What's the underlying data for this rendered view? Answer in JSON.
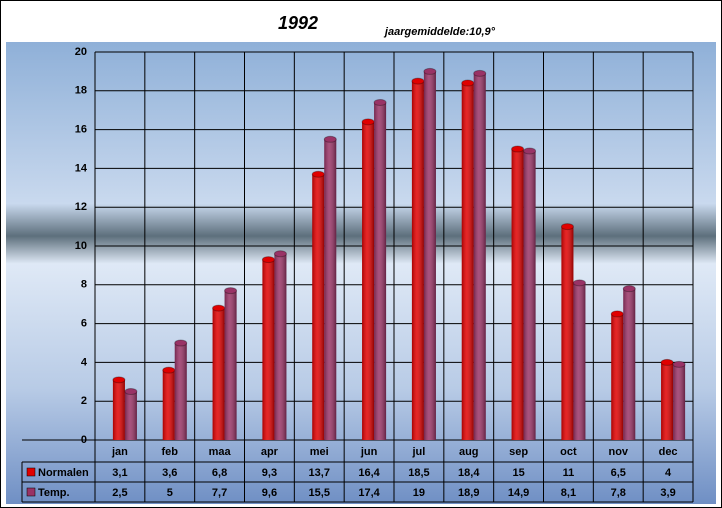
{
  "chart_data": {
    "type": "bar",
    "title": "1992",
    "subtitle": "jaargemiddelde:10,9°",
    "categories": [
      "jan",
      "feb",
      "maa",
      "apr",
      "mei",
      "jun",
      "jul",
      "aug",
      "sep",
      "oct",
      "nov",
      "dec"
    ],
    "series": [
      {
        "name": "Normalen",
        "color": "#e00000",
        "values": [
          3.1,
          3.6,
          6.8,
          9.3,
          13.7,
          16.4,
          18.5,
          18.4,
          15,
          11,
          6.5,
          4
        ],
        "value_labels": [
          "3,1",
          "3,6",
          "6,8",
          "9,3",
          "13,7",
          "16,4",
          "18,5",
          "18,4",
          "15",
          "11",
          "6,5",
          "4"
        ]
      },
      {
        "name": "Temp.",
        "color": "#993366",
        "values": [
          2.5,
          5,
          7.7,
          9.6,
          15.5,
          17.4,
          19,
          18.9,
          14.9,
          8.1,
          7.8,
          3.9
        ],
        "value_labels": [
          "2,5",
          "5",
          "7,7",
          "9,6",
          "15,5",
          "17,4",
          "19",
          "18,9",
          "14,9",
          "8,1",
          "7,8",
          "3,9"
        ]
      }
    ],
    "ylim": [
      0,
      20
    ],
    "yticks": [
      0,
      2,
      4,
      6,
      8,
      10,
      12,
      14,
      16,
      18,
      20
    ],
    "grid": true
  }
}
